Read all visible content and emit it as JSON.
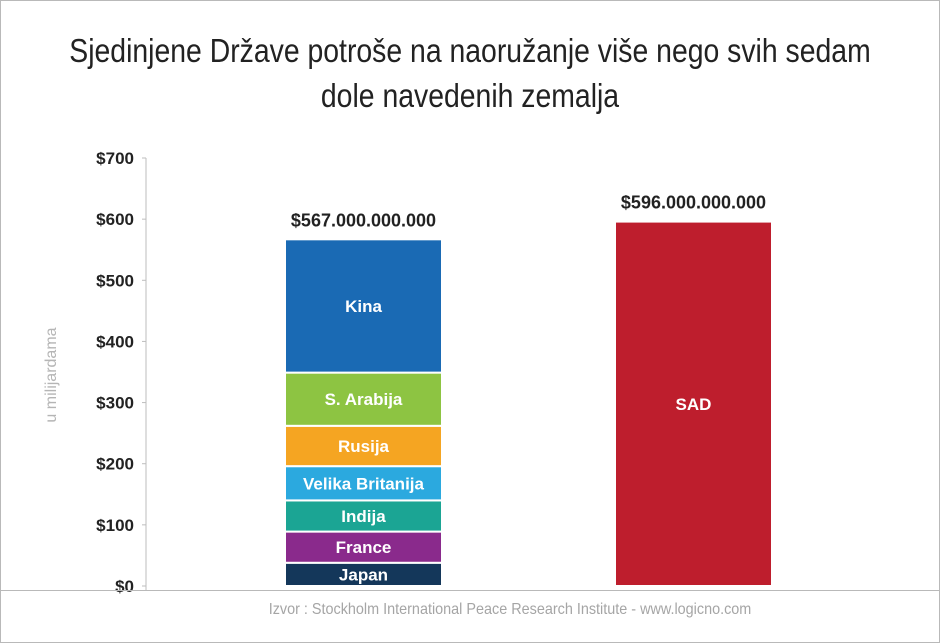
{
  "title": "Sjedinjene Države potroše na naoružanje više nego svih sedam dole navedenih zemalja",
  "source": "Izvor : Stockholm International Peace Research Institute - www.logicno.com",
  "chart_data": {
    "type": "bar",
    "stacked": true,
    "title": "Sjedinjene Države potroše na naoružanje više nego svih sedam dole navedenih zemalja",
    "ylabel": "u milijardama",
    "xlabel": "",
    "ylim": [
      0,
      700
    ],
    "yticks": [
      0,
      100,
      200,
      300,
      400,
      500,
      600,
      700
    ],
    "ytick_labels": [
      "$0",
      "$100",
      "$200",
      "$300",
      "$400",
      "$500",
      "$600",
      "$700"
    ],
    "grid": false,
    "legend": "none",
    "bars": [
      {
        "total_label": "$567.000.000.000",
        "total": 567,
        "segments": [
          {
            "name": "Japan",
            "value": 38,
            "color": "#14375a"
          },
          {
            "name": "France",
            "value": 51,
            "color": "#8a2a8c"
          },
          {
            "name": "Indija",
            "value": 51,
            "color": "#1ba594"
          },
          {
            "name": "Velika Britanija",
            "value": 56,
            "color": "#2ba9df"
          },
          {
            "name": "Rusija",
            "value": 66,
            "color": "#f5a522"
          },
          {
            "name": "S. Arabija",
            "value": 87,
            "color": "#8dc442"
          },
          {
            "name": "Kina",
            "value": 218,
            "color": "#1a6ab4"
          }
        ]
      },
      {
        "total_label": "$596.000.000.000",
        "total": 596,
        "segments": [
          {
            "name": "SAD",
            "value": 596,
            "color": "#be1e2d"
          }
        ]
      }
    ]
  }
}
